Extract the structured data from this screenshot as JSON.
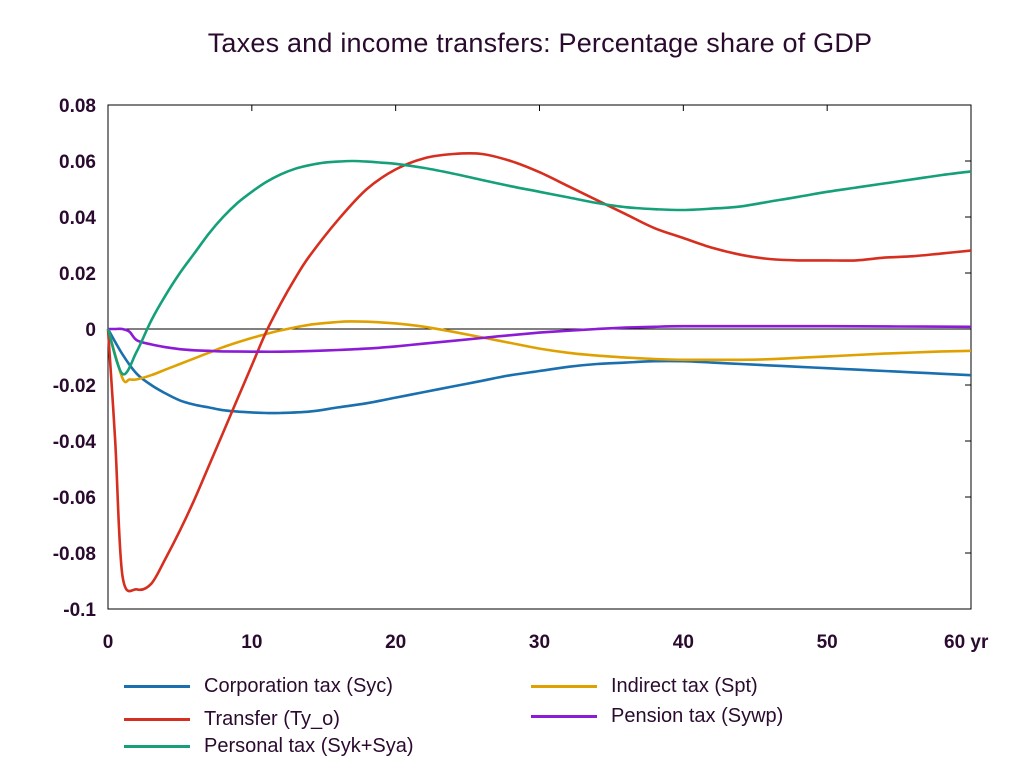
{
  "chart_data": {
    "type": "line",
    "title": "Taxes and income transfers: Percentage share of GDP",
    "x_ticks": [
      "0",
      "10",
      "20",
      "30",
      "40",
      "50",
      "60 yr"
    ],
    "y_ticks": [
      "0.08",
      "0.06",
      "0.04",
      "0.02",
      "0",
      "-0.02",
      "-0.04",
      "-0.06",
      "-0.08",
      "-0.1"
    ],
    "xlim": [
      0,
      60
    ],
    "ylim": [
      -0.1,
      0.08
    ],
    "zero_line": true,
    "grid": false,
    "legend_position": "bottom",
    "series": [
      {
        "name": "Corporation tax (Syc)",
        "color": "#1a6fae",
        "x": [
          0,
          1,
          2,
          3,
          4,
          5,
          6,
          7,
          8,
          9,
          10,
          11,
          12,
          14,
          16,
          18,
          20,
          22,
          24,
          26,
          28,
          30,
          32,
          34,
          36,
          38,
          40,
          42,
          44,
          46,
          48,
          50,
          52,
          54,
          56,
          58,
          60
        ],
        "y": [
          0,
          -0.009,
          -0.016,
          -0.02,
          -0.023,
          -0.0255,
          -0.027,
          -0.028,
          -0.029,
          -0.0295,
          -0.0298,
          -0.03,
          -0.03,
          -0.0295,
          -0.028,
          -0.0265,
          -0.0245,
          -0.0225,
          -0.0205,
          -0.0185,
          -0.0165,
          -0.015,
          -0.0135,
          -0.0125,
          -0.012,
          -0.0115,
          -0.0115,
          -0.012,
          -0.0125,
          -0.013,
          -0.0135,
          -0.014,
          -0.0145,
          -0.015,
          -0.0155,
          -0.016,
          -0.0165
        ]
      },
      {
        "name": "Indirect tax (Spt)",
        "color": "#e0a100",
        "x": [
          0,
          1,
          1.5,
          2,
          3,
          4,
          5,
          6,
          7,
          8,
          9,
          10,
          11,
          12,
          14,
          16,
          17,
          18,
          20,
          22,
          24,
          26,
          28,
          30,
          32,
          34,
          36,
          38,
          40,
          42,
          44,
          46,
          48,
          50,
          52,
          54,
          56,
          58,
          60
        ],
        "y": [
          0,
          -0.0175,
          -0.018,
          -0.018,
          -0.0165,
          -0.0145,
          -0.0125,
          -0.0105,
          -0.0085,
          -0.0065,
          -0.0048,
          -0.0032,
          -0.0018,
          -0.0005,
          0.0015,
          0.0025,
          0.0027,
          0.0026,
          0.002,
          0.0008,
          -0.001,
          -0.003,
          -0.005,
          -0.007,
          -0.0085,
          -0.0095,
          -0.0102,
          -0.0107,
          -0.011,
          -0.011,
          -0.011,
          -0.0108,
          -0.0103,
          -0.0098,
          -0.0093,
          -0.0088,
          -0.0084,
          -0.008,
          -0.0078
        ]
      },
      {
        "name": "Transfer (Ty_o)",
        "color": "#d62f1f",
        "x": [
          0,
          0.5,
          1,
          2,
          3,
          4,
          5,
          6,
          7,
          8,
          9,
          10,
          11,
          12,
          13,
          14,
          16,
          18,
          20,
          22,
          24,
          26,
          28,
          30,
          32,
          34,
          36,
          38,
          40,
          42,
          44,
          46,
          48,
          50,
          52,
          54,
          56,
          58,
          60
        ],
        "y": [
          0,
          -0.04,
          -0.088,
          -0.093,
          -0.091,
          -0.082,
          -0.072,
          -0.061,
          -0.049,
          -0.037,
          -0.025,
          -0.013,
          -0.001,
          0.009,
          0.018,
          0.026,
          0.039,
          0.05,
          0.057,
          0.061,
          0.0625,
          0.0625,
          0.06,
          0.056,
          0.051,
          0.046,
          0.041,
          0.036,
          0.0325,
          0.029,
          0.0265,
          0.025,
          0.0245,
          0.0245,
          0.0245,
          0.0255,
          0.026,
          0.027,
          0.028
        ]
      },
      {
        "name": "Pension tax (Sywp)",
        "color": "#8c1bd6",
        "x": [
          0,
          0.5,
          1,
          1.5,
          2,
          3,
          4,
          5,
          6,
          7,
          8,
          10,
          12,
          14,
          16,
          18,
          20,
          22,
          24,
          26,
          28,
          30,
          32,
          34,
          36,
          38,
          40,
          45,
          50,
          55,
          60
        ],
        "y": [
          0,
          0,
          0,
          -0.001,
          -0.004,
          -0.0055,
          -0.0065,
          -0.0072,
          -0.0076,
          -0.0078,
          -0.008,
          -0.0081,
          -0.0081,
          -0.0079,
          -0.0075,
          -0.007,
          -0.0062,
          -0.0052,
          -0.0042,
          -0.0032,
          -0.0022,
          -0.0013,
          -0.0006,
          0,
          0.0005,
          0.0008,
          0.001,
          0.001,
          0.001,
          0.0009,
          0.0008
        ]
      },
      {
        "name": "Personal tax (Syk+Sya)",
        "color": "#15a07a",
        "x": [
          0,
          1,
          2,
          3,
          4,
          5,
          6,
          7,
          8,
          9,
          10,
          11,
          12,
          13,
          14,
          15,
          16,
          17,
          18,
          19,
          20,
          22,
          24,
          26,
          28,
          30,
          32,
          34,
          36,
          38,
          40,
          42,
          44,
          46,
          48,
          50,
          52,
          54,
          56,
          58,
          60
        ],
        "y": [
          0,
          -0.016,
          -0.008,
          0.003,
          0.012,
          0.02,
          0.027,
          0.034,
          0.04,
          0.045,
          0.049,
          0.0525,
          0.0552,
          0.0572,
          0.0585,
          0.0594,
          0.0598,
          0.06,
          0.0598,
          0.0594,
          0.059,
          0.0575,
          0.0555,
          0.0532,
          0.051,
          0.049,
          0.047,
          0.045,
          0.0435,
          0.0428,
          0.0425,
          0.043,
          0.0438,
          0.0455,
          0.0472,
          0.049,
          0.0505,
          0.052,
          0.0535,
          0.055,
          0.0563
        ]
      }
    ]
  }
}
